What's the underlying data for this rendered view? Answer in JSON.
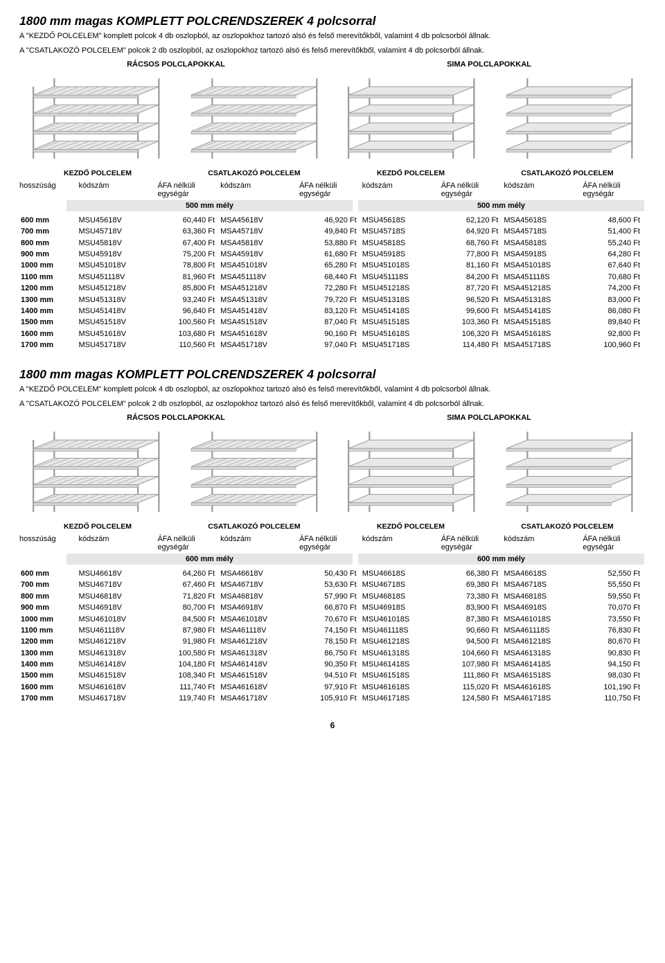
{
  "colors": {
    "band": "#e6e6e6",
    "text": "#000000",
    "bg": "#ffffff",
    "shelf_stroke": "#9a9a9a",
    "shelf_fill": "#e8e8e6"
  },
  "page_number": "6",
  "sections": [
    {
      "title": "1800 mm magas KOMPLETT POLCRENDSZEREK 4 polcsorral",
      "desc1": "A \"KEZDŐ POLCELEM\" komplett polcok 4 db oszlopból, az oszlopokhoz tartozó alsó és felső merevítőkből, valamint 4 db polcsorból állnak.",
      "desc2": "A \"CSATLAKOZÓ POLCELEM\" polcok 2 db oszlopból, az oszlopokhoz tartozó alsó és felső merevítőkből, valamint 4 db polcsorból állnak.",
      "type_left": "RÁCSOS POLCLAPOKKAL",
      "type_right": "SIMA POLCLAPOKKAL",
      "sublabels": [
        "KEZDŐ POLCELEM",
        "CSATLAKOZÓ POLCELEM",
        "KEZDŐ POLCELEM",
        "CSATLAKOZÓ POLCELEM"
      ],
      "hdr_len": "hosszúság",
      "hdr_code": "kódszám",
      "hdr_price1": "ÁFA nélküli",
      "hdr_price2": "egységár",
      "depth_label": "500 mm mély",
      "rows": [
        {
          "len": "600 mm",
          "c1": "MSU45618V",
          "p1": "60,440 Ft",
          "c2": "MSA45618V",
          "p2": "46,920 Ft",
          "c3": "MSU45618S",
          "p3": "62,120 Ft",
          "c4": "MSA45618S",
          "p4": "48,600 Ft"
        },
        {
          "len": "700 mm",
          "c1": "MSU45718V",
          "p1": "63,360 Ft",
          "c2": "MSA45718V",
          "p2": "49,840 Ft",
          "c3": "MSU45718S",
          "p3": "64,920 Ft",
          "c4": "MSA45718S",
          "p4": "51,400 Ft"
        },
        {
          "len": "800 mm",
          "c1": "MSU45818V",
          "p1": "67,400 Ft",
          "c2": "MSA45818V",
          "p2": "53,880 Ft",
          "c3": "MSU45818S",
          "p3": "68,760 Ft",
          "c4": "MSA45818S",
          "p4": "55,240 Ft"
        },
        {
          "len": "900 mm",
          "c1": "MSU45918V",
          "p1": "75,200 Ft",
          "c2": "MSA45918V",
          "p2": "61,680 Ft",
          "c3": "MSU45918S",
          "p3": "77,800 Ft",
          "c4": "MSA45918S",
          "p4": "64,280 Ft"
        },
        {
          "len": "1000 mm",
          "c1": "MSU451018V",
          "p1": "78,800 Ft",
          "c2": "MSA451018V",
          "p2": "65,280 Ft",
          "c3": "MSU451018S",
          "p3": "81,160 Ft",
          "c4": "MSA451018S",
          "p4": "67,640 Ft"
        },
        {
          "len": "1100 mm",
          "c1": "MSU451118V",
          "p1": "81,960 Ft",
          "c2": "MSA451118V",
          "p2": "68,440 Ft",
          "c3": "MSU451118S",
          "p3": "84,200 Ft",
          "c4": "MSA451118S",
          "p4": "70,680 Ft"
        },
        {
          "len": "1200 mm",
          "c1": "MSU451218V",
          "p1": "85,800 Ft",
          "c2": "MSA451218V",
          "p2": "72,280 Ft",
          "c3": "MSU451218S",
          "p3": "87,720 Ft",
          "c4": "MSA451218S",
          "p4": "74,200 Ft"
        },
        {
          "len": "1300 mm",
          "c1": "MSU451318V",
          "p1": "93,240 Ft",
          "c2": "MSA451318V",
          "p2": "79,720 Ft",
          "c3": "MSU451318S",
          "p3": "96,520 Ft",
          "c4": "MSA451318S",
          "p4": "83,000 Ft"
        },
        {
          "len": "1400 mm",
          "c1": "MSU451418V",
          "p1": "96,640 Ft",
          "c2": "MSA451418V",
          "p2": "83,120 Ft",
          "c3": "MSU451418S",
          "p3": "99,600 Ft",
          "c4": "MSA451418S",
          "p4": "86,080 Ft"
        },
        {
          "len": "1500 mm",
          "c1": "MSU451518V",
          "p1": "100,560 Ft",
          "c2": "MSA451518V",
          "p2": "87,040 Ft",
          "c3": "MSU451518S",
          "p3": "103,360 Ft",
          "c4": "MSA451518S",
          "p4": "89,840 Ft"
        },
        {
          "len": "1600 mm",
          "c1": "MSU451618V",
          "p1": "103,680 Ft",
          "c2": "MSA451618V",
          "p2": "90,160 Ft",
          "c3": "MSU451618S",
          "p3": "106,320 Ft",
          "c4": "MSA451618S",
          "p4": "92,800 Ft"
        },
        {
          "len": "1700 mm",
          "c1": "MSU451718V",
          "p1": "110,560 Ft",
          "c2": "MSA451718V",
          "p2": "97,040 Ft",
          "c3": "MSU451718S",
          "p3": "114,480 Ft",
          "c4": "MSA451718S",
          "p4": "100,960 Ft"
        }
      ]
    },
    {
      "title": "1800 mm magas KOMPLETT POLCRENDSZEREK 4 polcsorral",
      "desc1": "A \"KEZDŐ POLCELEM\" komplett polcok 4 db oszlopból, az oszlopokhoz tartozó alsó és felső merevítőkből, valamint 4 db polcsorból állnak.",
      "desc2": "A \"CSATLAKOZÓ POLCELEM\" polcok 2 db oszlopból, az oszlopokhoz tartozó alsó és felső merevítőkből, valamint 4 db polcsorból állnak.",
      "type_left": "RÁCSOS POLCLAPOKKAL",
      "type_right": "SIMA POLCLAPOKKAL",
      "sublabels": [
        "KEZDŐ POLCELEM",
        "CSATLAKOZÓ POLCELEM",
        "KEZDŐ POLCELEM",
        "CSATLAKOZÓ POLCELEM"
      ],
      "hdr_len": "hosszúság",
      "hdr_code": "kódszám",
      "hdr_price1": "ÁFA nélküli",
      "hdr_price2": "egységár",
      "depth_label": "600 mm mély",
      "rows": [
        {
          "len": "600 mm",
          "c1": "MSU46618V",
          "p1": "64,260 Ft",
          "c2": "MSA46618V",
          "p2": "50,430 Ft",
          "c3": "MSU46618S",
          "p3": "66,380 Ft",
          "c4": "MSA46618S",
          "p4": "52,550 Ft"
        },
        {
          "len": "700 mm",
          "c1": "MSU46718V",
          "p1": "67,460 Ft",
          "c2": "MSA46718V",
          "p2": "53,630 Ft",
          "c3": "MSU46718S",
          "p3": "69,380 Ft",
          "c4": "MSA46718S",
          "p4": "55,550 Ft"
        },
        {
          "len": "800 mm",
          "c1": "MSU46818V",
          "p1": "71,820 Ft",
          "c2": "MSA46818V",
          "p2": "57,990 Ft",
          "c3": "MSU46818S",
          "p3": "73,380 Ft",
          "c4": "MSA46818S",
          "p4": "59,550 Ft"
        },
        {
          "len": "900 mm",
          "c1": "MSU46918V",
          "p1": "80,700 Ft",
          "c2": "MSA46918V",
          "p2": "66,870 Ft",
          "c3": "MSU46918S",
          "p3": "83,900 Ft",
          "c4": "MSA46918S",
          "p4": "70,070 Ft"
        },
        {
          "len": "1000 mm",
          "c1": "MSU461018V",
          "p1": "84,500 Ft",
          "c2": "MSA461018V",
          "p2": "70,670 Ft",
          "c3": "MSU461018S",
          "p3": "87,380 Ft",
          "c4": "MSA461018S",
          "p4": "73,550 Ft"
        },
        {
          "len": "1100 mm",
          "c1": "MSU461118V",
          "p1": "87,980 Ft",
          "c2": "MSA461118V",
          "p2": "74,150 Ft",
          "c3": "MSU461118S",
          "p3": "90,660 Ft",
          "c4": "MSA461118S",
          "p4": "76,830 Ft"
        },
        {
          "len": "1200 mm",
          "c1": "MSU461218V",
          "p1": "91,980 Ft",
          "c2": "MSA461218V",
          "p2": "78,150 Ft",
          "c3": "MSU461218S",
          "p3": "94,500 Ft",
          "c4": "MSA461218S",
          "p4": "80,670 Ft"
        },
        {
          "len": "1300 mm",
          "c1": "MSU461318V",
          "p1": "100,580 Ft",
          "c2": "MSA461318V",
          "p2": "86,750 Ft",
          "c3": "MSU461318S",
          "p3": "104,660 Ft",
          "c4": "MSA461318S",
          "p4": "90,830 Ft"
        },
        {
          "len": "1400 mm",
          "c1": "MSU461418V",
          "p1": "104,180 Ft",
          "c2": "MSA461418V",
          "p2": "90,350 Ft",
          "c3": "MSU461418S",
          "p3": "107,980 Ft",
          "c4": "MSA461418S",
          "p4": "94,150 Ft"
        },
        {
          "len": "1500 mm",
          "c1": "MSU461518V",
          "p1": "108,340 Ft",
          "c2": "MSA461518V",
          "p2": "94,510 Ft",
          "c3": "MSU461518S",
          "p3": "111,860 Ft",
          "c4": "MSA461518S",
          "p4": "98,030 Ft"
        },
        {
          "len": "1600 mm",
          "c1": "MSU461618V",
          "p1": "111,740 Ft",
          "c2": "MSA461618V",
          "p2": "97,910 Ft",
          "c3": "MSU461618S",
          "p3": "115,020 Ft",
          "c4": "MSA461618S",
          "p4": "101,190 Ft"
        },
        {
          "len": "1700 mm",
          "c1": "MSU461718V",
          "p1": "119,740 Ft",
          "c2": "MSA461718V",
          "p2": "105,910 Ft",
          "c3": "MSU461718S",
          "p3": "124,580 Ft",
          "c4": "MSA461718S",
          "p4": "110,750 Ft"
        }
      ]
    }
  ]
}
